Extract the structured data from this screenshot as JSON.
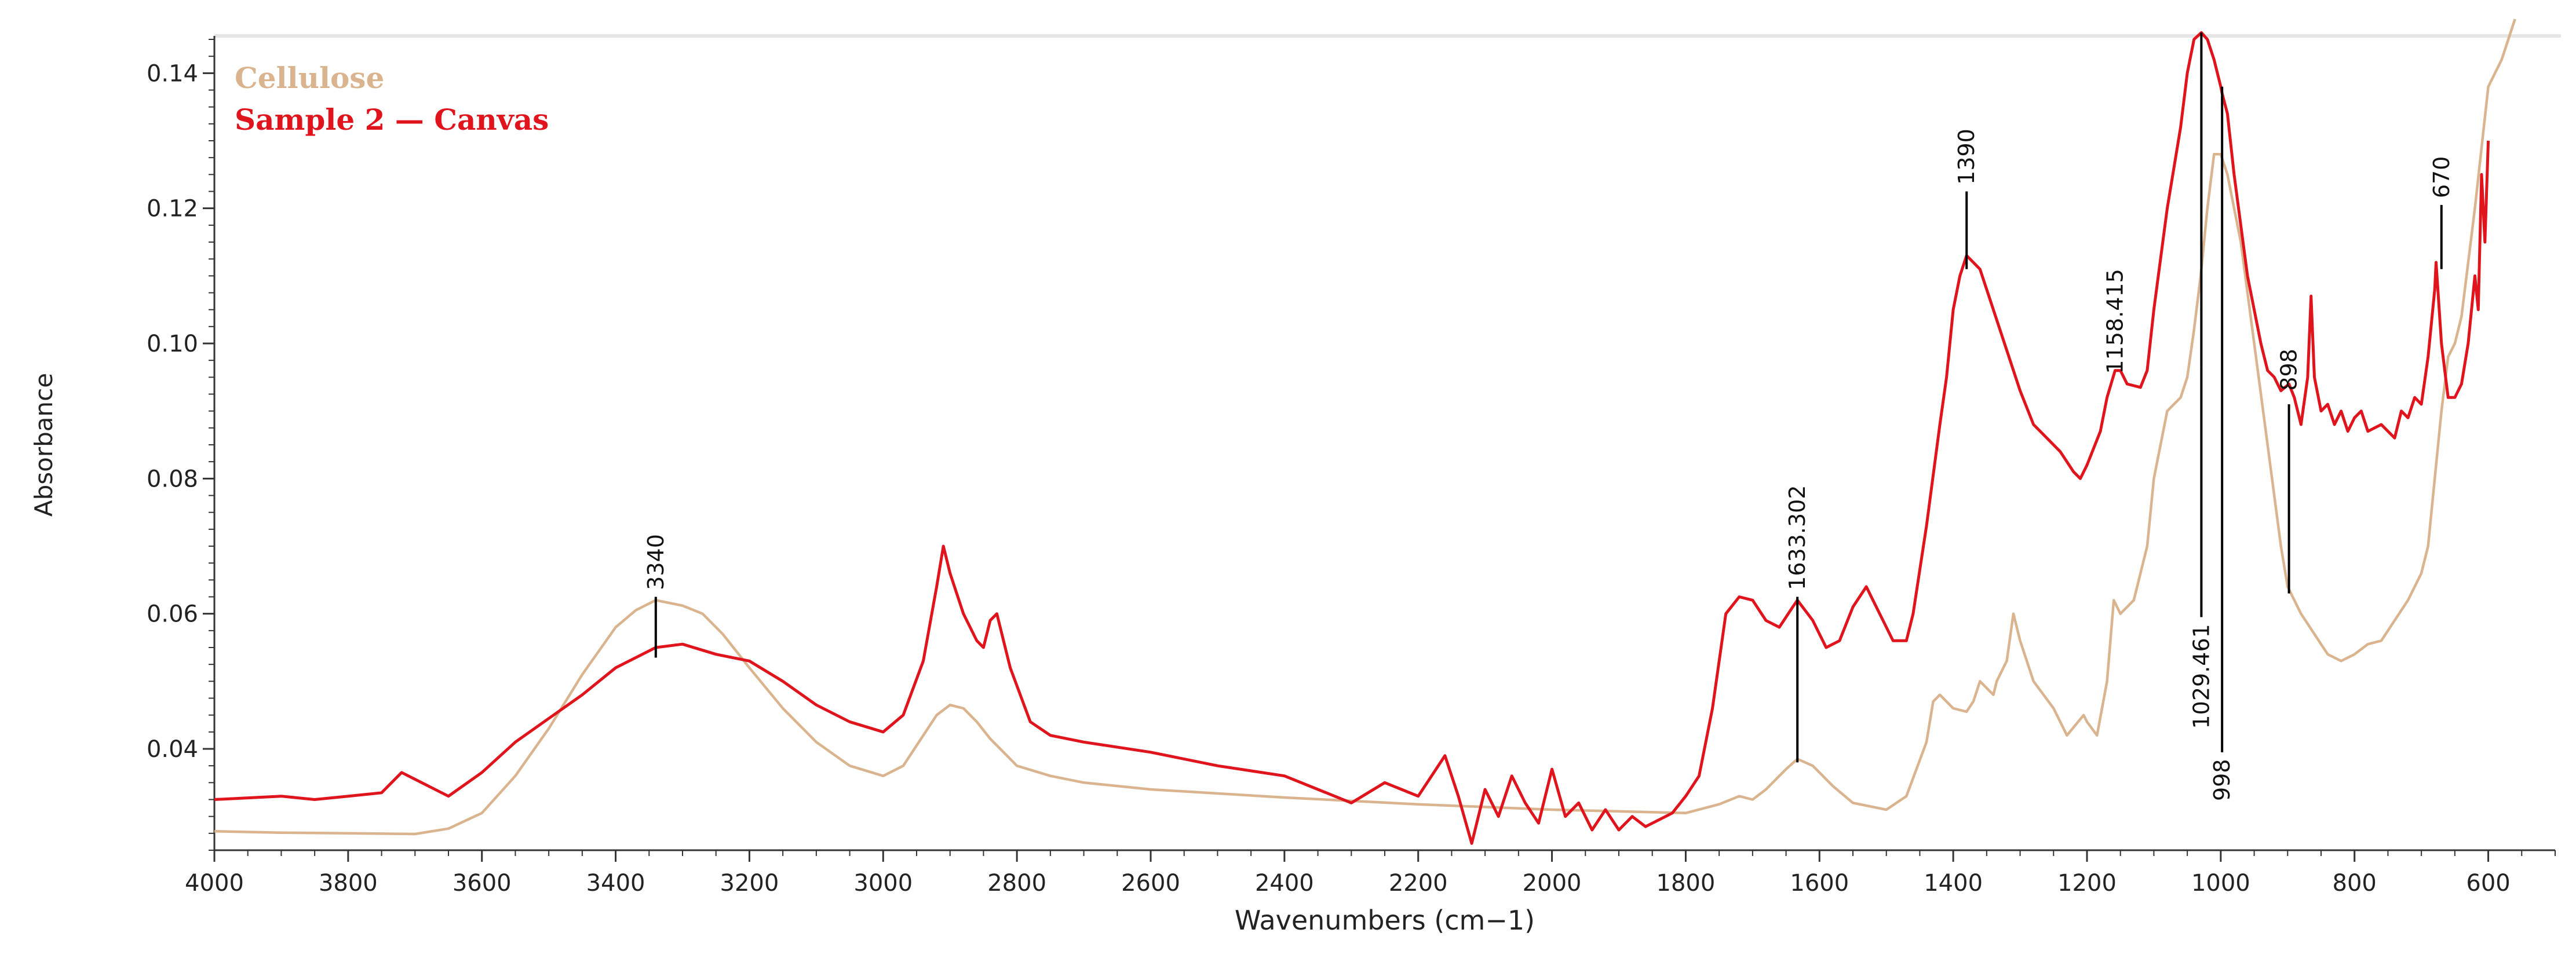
{
  "chart_data": {
    "type": "line",
    "title": "",
    "xlabel": "Wavenumbers (cm−1)",
    "ylabel": "Absorbance",
    "xlim": [
      4000,
      500
    ],
    "ylim": [
      0.025,
      0.145
    ],
    "x_reversed": true,
    "grid": false,
    "legend_position": "top-left",
    "x_ticks": [
      4000,
      3800,
      3600,
      3400,
      3200,
      3000,
      2800,
      2600,
      2400,
      2200,
      2000,
      1800,
      1600,
      1400,
      1200,
      1000,
      800,
      600
    ],
    "x_tick_labels": [
      "4000",
      "3800",
      "3600",
      "3400",
      "3200",
      "3000",
      "2800",
      "2600",
      "2400",
      "2200",
      "2000",
      "1800",
      "1600",
      "1400",
      "1200",
      "1000",
      "800",
      "600"
    ],
    "y_ticks": [
      0.04,
      0.06,
      0.08,
      0.1,
      0.12,
      0.14
    ],
    "y_tick_labels": [
      "0.04",
      "0.06",
      "0.08",
      "0.10",
      "0.12",
      "0.14"
    ],
    "series": [
      {
        "name": "Cellulose",
        "color": "#d9b48f",
        "x": [
          4000,
          3900,
          3800,
          3700,
          3650,
          3600,
          3550,
          3500,
          3450,
          3400,
          3370,
          3340,
          3300,
          3270,
          3240,
          3200,
          3150,
          3100,
          3050,
          3000,
          2970,
          2940,
          2920,
          2900,
          2880,
          2860,
          2840,
          2820,
          2800,
          2750,
          2700,
          2600,
          2400,
          2200,
          2000,
          1800,
          1750,
          1720,
          1700,
          1680,
          1650,
          1633,
          1610,
          1580,
          1550,
          1500,
          1470,
          1440,
          1430,
          1420,
          1400,
          1380,
          1370,
          1360,
          1340,
          1335,
          1320,
          1310,
          1300,
          1280,
          1250,
          1230,
          1205,
          1200,
          1185,
          1170,
          1160,
          1150,
          1130,
          1110,
          1100,
          1080,
          1060,
          1050,
          1040,
          1030,
          1020,
          1010,
          1000,
          990,
          970,
          950,
          930,
          910,
          900,
          890,
          880,
          860,
          840,
          820,
          800,
          780,
          760,
          740,
          720,
          700,
          690,
          680,
          670,
          660,
          650,
          640,
          620,
          600,
          580,
          560
        ],
        "y": [
          0.0278,
          0.0276,
          0.0275,
          0.0274,
          0.0282,
          0.0305,
          0.036,
          0.043,
          0.051,
          0.058,
          0.0605,
          0.062,
          0.0612,
          0.06,
          0.057,
          0.052,
          0.046,
          0.041,
          0.0375,
          0.036,
          0.0375,
          0.042,
          0.045,
          0.0465,
          0.046,
          0.044,
          0.0415,
          0.0395,
          0.0375,
          0.036,
          0.035,
          0.034,
          0.0328,
          0.0318,
          0.031,
          0.0305,
          0.0318,
          0.033,
          0.0325,
          0.034,
          0.037,
          0.0385,
          0.0375,
          0.0345,
          0.032,
          0.031,
          0.033,
          0.041,
          0.047,
          0.048,
          0.046,
          0.0455,
          0.047,
          0.05,
          0.048,
          0.05,
          0.053,
          0.06,
          0.056,
          0.05,
          0.046,
          0.042,
          0.045,
          0.044,
          0.042,
          0.05,
          0.062,
          0.06,
          0.062,
          0.07,
          0.08,
          0.09,
          0.092,
          0.095,
          0.102,
          0.11,
          0.12,
          0.128,
          0.128,
          0.125,
          0.115,
          0.1,
          0.085,
          0.07,
          0.064,
          0.062,
          0.06,
          0.057,
          0.054,
          0.053,
          0.054,
          0.0555,
          0.056,
          0.059,
          0.062,
          0.066,
          0.07,
          0.08,
          0.09,
          0.098,
          0.1,
          0.104,
          0.12,
          0.138,
          0.142,
          0.148
        ]
      },
      {
        "name": "Sample 2 — Canvas",
        "color": "#e0141c",
        "x": [
          4000,
          3900,
          3850,
          3800,
          3750,
          3720,
          3700,
          3650,
          3600,
          3550,
          3500,
          3450,
          3400,
          3370,
          3340,
          3300,
          3250,
          3200,
          3150,
          3100,
          3050,
          3000,
          2970,
          2940,
          2920,
          2910,
          2900,
          2880,
          2860,
          2850,
          2840,
          2830,
          2810,
          2780,
          2750,
          2700,
          2600,
          2500,
          2400,
          2350,
          2300,
          2250,
          2200,
          2160,
          2140,
          2120,
          2100,
          2080,
          2060,
          2040,
          2020,
          2000,
          1980,
          1960,
          1940,
          1920,
          1900,
          1880,
          1860,
          1840,
          1820,
          1800,
          1780,
          1760,
          1740,
          1720,
          1700,
          1680,
          1660,
          1640,
          1633,
          1610,
          1590,
          1570,
          1550,
          1530,
          1510,
          1490,
          1470,
          1460,
          1440,
          1420,
          1410,
          1400,
          1390,
          1380,
          1370,
          1360,
          1340,
          1320,
          1300,
          1280,
          1260,
          1240,
          1220,
          1210,
          1200,
          1180,
          1170,
          1158,
          1150,
          1140,
          1120,
          1110,
          1100,
          1080,
          1060,
          1050,
          1040,
          1029,
          1020,
          1010,
          1000,
          998,
          990,
          980,
          960,
          940,
          930,
          920,
          910,
          898,
          890,
          880,
          870,
          865,
          860,
          850,
          840,
          830,
          820,
          810,
          800,
          790,
          780,
          760,
          740,
          730,
          720,
          710,
          700,
          690,
          680,
          678,
          670,
          665,
          660,
          650,
          640,
          630,
          620,
          615,
          610,
          605,
          600
        ],
        "y": [
          0.0325,
          0.033,
          0.0325,
          0.033,
          0.0335,
          0.0365,
          0.0355,
          0.033,
          0.0365,
          0.041,
          0.0445,
          0.048,
          0.052,
          0.0535,
          0.055,
          0.0555,
          0.054,
          0.053,
          0.05,
          0.0465,
          0.044,
          0.0425,
          0.045,
          0.053,
          0.064,
          0.07,
          0.066,
          0.06,
          0.056,
          0.055,
          0.059,
          0.06,
          0.052,
          0.044,
          0.042,
          0.041,
          0.0395,
          0.0375,
          0.036,
          0.034,
          0.032,
          0.035,
          0.033,
          0.039,
          0.033,
          0.026,
          0.034,
          0.03,
          0.036,
          0.032,
          0.029,
          0.037,
          0.03,
          0.032,
          0.028,
          0.031,
          0.028,
          0.03,
          0.0285,
          0.0295,
          0.0305,
          0.033,
          0.036,
          0.046,
          0.06,
          0.0625,
          0.062,
          0.059,
          0.058,
          0.061,
          0.062,
          0.059,
          0.055,
          0.056,
          0.061,
          0.064,
          0.06,
          0.056,
          0.056,
          0.06,
          0.073,
          0.088,
          0.095,
          0.105,
          0.11,
          0.113,
          0.112,
          0.111,
          0.105,
          0.099,
          0.093,
          0.088,
          0.086,
          0.084,
          0.081,
          0.08,
          0.082,
          0.087,
          0.092,
          0.096,
          0.096,
          0.094,
          0.0935,
          0.096,
          0.105,
          0.12,
          0.132,
          0.14,
          0.145,
          0.146,
          0.145,
          0.142,
          0.138,
          0.137,
          0.134,
          0.125,
          0.11,
          0.1,
          0.096,
          0.095,
          0.093,
          0.094,
          0.092,
          0.088,
          0.095,
          0.107,
          0.095,
          0.09,
          0.091,
          0.088,
          0.09,
          0.087,
          0.089,
          0.09,
          0.087,
          0.088,
          0.086,
          0.09,
          0.089,
          0.092,
          0.091,
          0.098,
          0.108,
          0.112,
          0.1,
          0.096,
          0.092,
          0.092,
          0.094,
          0.1,
          0.11,
          0.105,
          0.125,
          0.115,
          0.13
        ]
      }
    ],
    "annotations": [
      {
        "label": "3340",
        "x": 3340
      },
      {
        "label": "1633.302",
        "x": 1633
      },
      {
        "label": "1390",
        "x": 1380
      },
      {
        "label": "1158.415",
        "x": 1158
      },
      {
        "label": "1029.461",
        "x": 1029
      },
      {
        "label": "998",
        "x": 998
      },
      {
        "label": "898",
        "x": 898
      },
      {
        "label": "670",
        "x": 670
      }
    ]
  }
}
